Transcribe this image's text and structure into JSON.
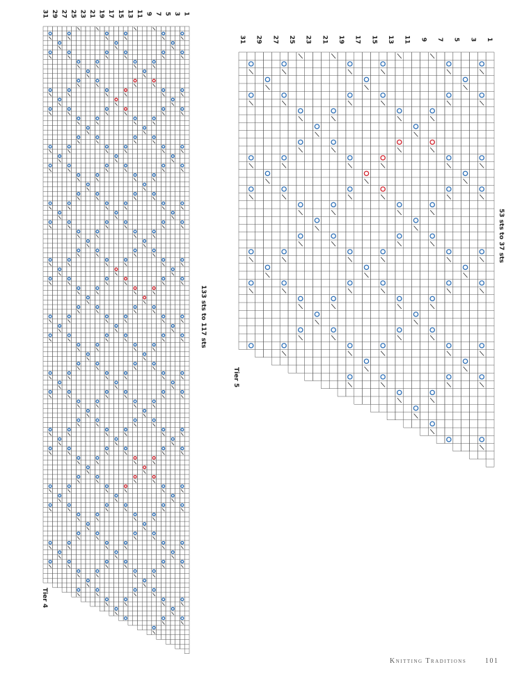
{
  "tier4": {
    "label": "Tier 4",
    "stitches": "133 sts to 117 sts",
    "rows": [
      "31",
      "29",
      "27",
      "25",
      "23",
      "21",
      "19",
      "17",
      "15",
      "13",
      "11",
      "9",
      "7",
      "5",
      "3",
      "1"
    ]
  },
  "tier5": {
    "label": "Tier 5",
    "stitches": "53 sts to 37 sts",
    "rows": [
      "31",
      "29",
      "27",
      "25",
      "23",
      "21",
      "19",
      "17",
      "15",
      "13",
      "11",
      "9",
      "7",
      "5",
      "3",
      "1"
    ]
  },
  "footer": {
    "running_head": "Knitting Traditions",
    "page": "101"
  }
}
